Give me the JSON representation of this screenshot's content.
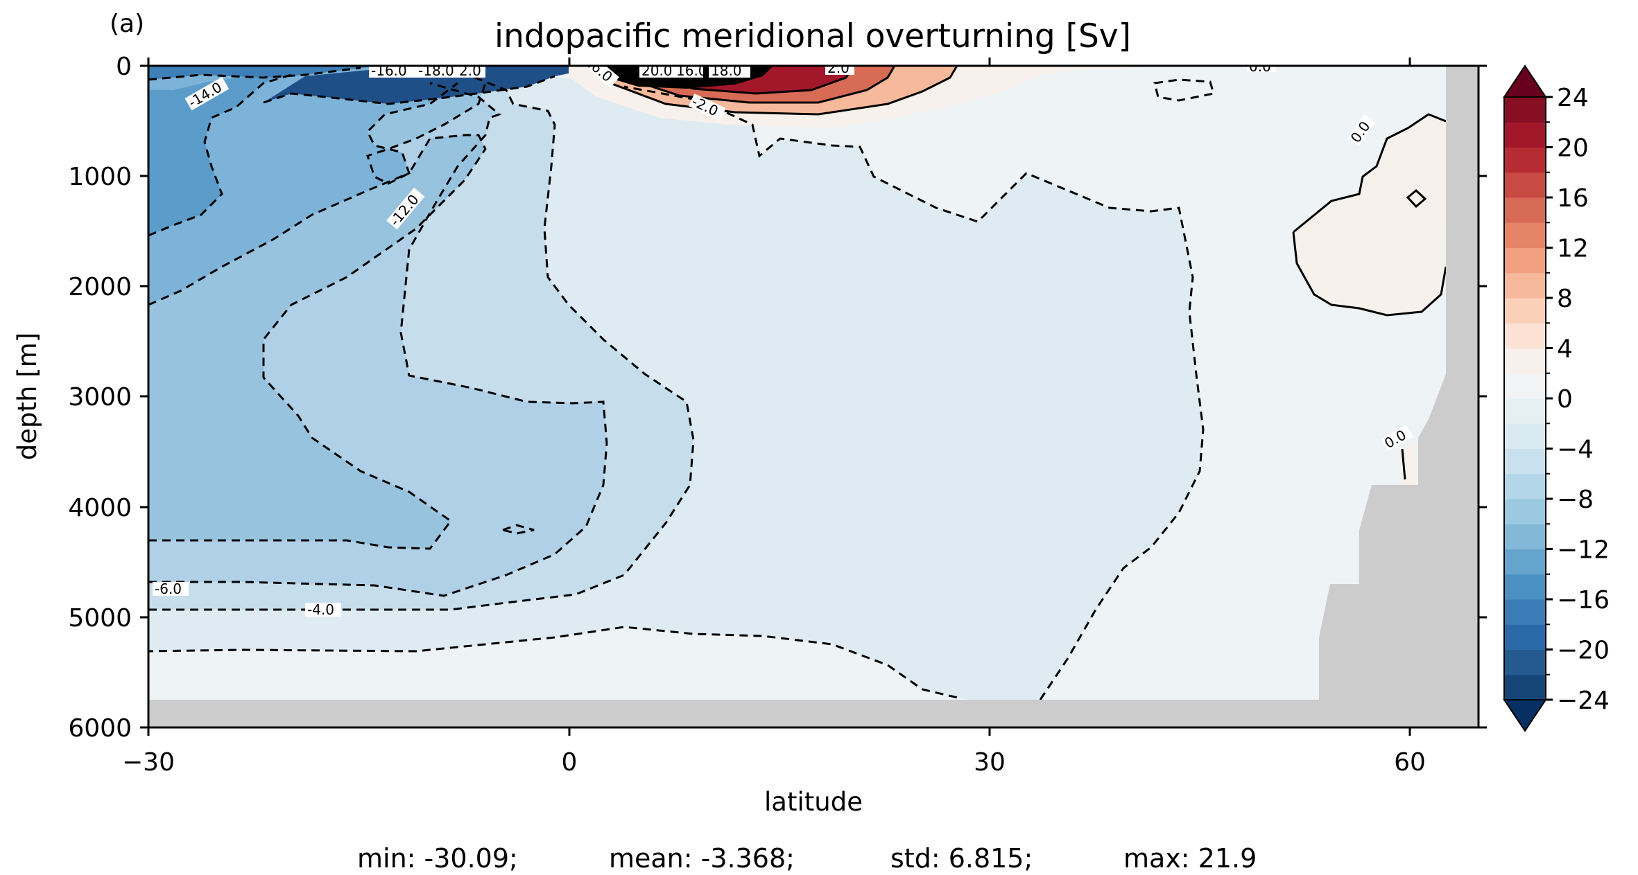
{
  "chart_data": {
    "type": "contour",
    "panel_label": "(a)",
    "title": "indopacific meridional overturning [Sv]",
    "xlabel": "latitude",
    "ylabel": "depth [m]",
    "xlim": [
      -30,
      65
    ],
    "ylim": [
      6000,
      0
    ],
    "xticks": [
      -30,
      0,
      30,
      60
    ],
    "yticks": [
      0,
      1000,
      2000,
      3000,
      4000,
      5000,
      6000
    ],
    "xtick_labels": [
      "−30",
      "0",
      "30",
      "60"
    ],
    "ytick_labels": [
      "0",
      "1000",
      "2000",
      "3000",
      "4000",
      "5000",
      "6000"
    ],
    "colorbar": {
      "range": [
        -24,
        24
      ],
      "level_step": 2,
      "extend": "both",
      "cmap": "RdBu_r",
      "ticks": [
        24,
        20,
        16,
        12,
        8,
        4,
        0,
        -4,
        -8,
        -12,
        -16,
        -20,
        -24
      ],
      "tick_labels": [
        "24",
        "20",
        "16",
        "12",
        "8",
        "4",
        "0",
        "−4",
        "−8",
        "−12",
        "−16",
        "−20",
        "−24"
      ],
      "colors": [
        "#053061",
        "#154577",
        "#245a8e",
        "#2b6aa9",
        "#3a7cb5",
        "#4a90c2",
        "#64a4cd",
        "#82b9d8",
        "#9bc9e1",
        "#b3d6e8",
        "#c9e1ee",
        "#d9eaf3",
        "#e6eff4",
        "#f2f4f6",
        "#f8f0ea",
        "#fbe2d4",
        "#fad0b9",
        "#f6b99b",
        "#f2a07f",
        "#e68467",
        "#d86b56",
        "#c84b43",
        "#b72b33",
        "#a3172a",
        "#860f24",
        "#67001f"
      ]
    },
    "contour_labels": [
      "-16.0",
      "-18.0",
      "2.0",
      "-14.0",
      "-12.0",
      "-6.0",
      "-4.0",
      "6.0",
      "20.0",
      "16.0",
      "18.0",
      "2.0",
      "-2.0",
      "0.0",
      "0.0",
      "0.0"
    ],
    "stats": {
      "min": "min: -30.09;",
      "mean": "mean: -3.368;",
      "std": "std: 6.815;",
      "max": "max: 21.9"
    }
  }
}
